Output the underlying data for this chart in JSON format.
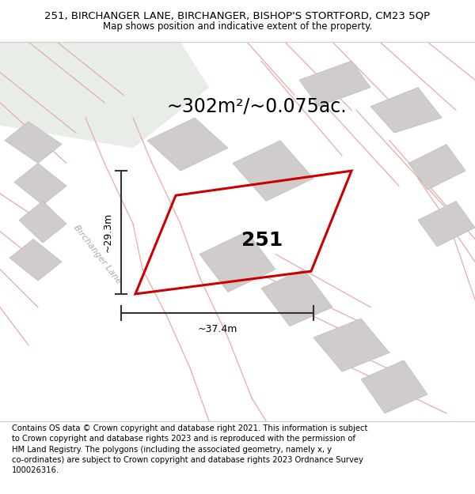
{
  "title": "251, BIRCHANGER LANE, BIRCHANGER, BISHOP'S STORTFORD, CM23 5QP",
  "subtitle": "Map shows position and indicative extent of the property.",
  "area_label": "~302m²/~0.075ac.",
  "property_number": "251",
  "width_label": "~37.4m",
  "height_label": "~29.3m",
  "street_label": "Birchanger Lane",
  "footer": "Contains OS data © Crown copyright and database right 2021. This information is subject to Crown copyright and database rights 2023 and is reproduced with the permission of HM Land Registry. The polygons (including the associated geometry, namely x, y co-ordinates) are subject to Crown copyright and database rights 2023 Ordnance Survey 100026316.",
  "map_bg": "#f2eeee",
  "green_color": "#e8ede8",
  "road_color": "#e8e4e4",
  "building_color": "#d0cccc",
  "building_edge": "#bbbbbb",
  "pink_line": "#e8aaaa",
  "red_color": "#cc0000",
  "dark_gray": "#333333",
  "title_fontsize": 9.5,
  "subtitle_fontsize": 8.5,
  "footer_fontsize": 7.2,
  "area_fontsize": 17,
  "number_fontsize": 18,
  "dim_fontsize": 9,
  "street_fontsize": 8
}
